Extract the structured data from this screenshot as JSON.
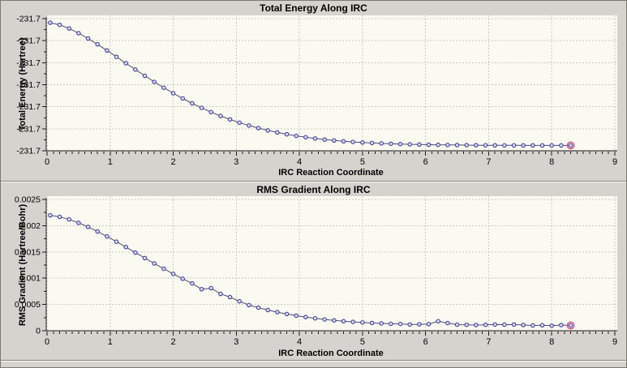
{
  "colors": {
    "window_bg": "#d6d3ce",
    "plot_bg": "#fbfaf0",
    "grid": "#c8c8c2",
    "axis": "#1a1a1a",
    "series_line": "#4d4d5a",
    "marker": "#3c3cae",
    "marker_fill": "#dfe0f4",
    "highlight": "#e0457b",
    "text": "#000000"
  },
  "chart_data": [
    {
      "type": "line",
      "title": "Total Energy Along IRC",
      "xlabel": "IRC Reaction Coordinate",
      "ylabel": "Total Energy (Hartree)",
      "xlim": [
        0,
        9
      ],
      "ylim": [
        -231.72,
        -231.69
      ],
      "grid": true,
      "x_major": 1,
      "x_minor": 0.1,
      "xtick_values": [
        0,
        1,
        2,
        3,
        4,
        5,
        6,
        7,
        8,
        9
      ],
      "xtick_labels": [
        "0",
        "1",
        "2",
        "3",
        "4",
        "5",
        "6",
        "7",
        "8",
        "9"
      ],
      "ytick_values": [
        -231.69,
        -231.695,
        -231.7,
        -231.705,
        -231.71,
        -231.715,
        -231.72
      ],
      "ytick_labels": [
        "-231.7",
        "-231.7",
        "-231.7",
        "-231.7",
        "-231.7",
        "-231.7",
        "-231.7"
      ],
      "highlight_last_point": true,
      "x": [
        0.05,
        0.2,
        0.35,
        0.5,
        0.65,
        0.8,
        0.95,
        1.1,
        1.25,
        1.4,
        1.55,
        1.7,
        1.85,
        2.0,
        2.15,
        2.3,
        2.45,
        2.6,
        2.75,
        2.9,
        3.05,
        3.2,
        3.35,
        3.5,
        3.65,
        3.8,
        3.95,
        4.1,
        4.25,
        4.4,
        4.55,
        4.7,
        4.85,
        5.0,
        5.15,
        5.3,
        5.45,
        5.6,
        5.75,
        5.9,
        6.05,
        6.2,
        6.35,
        6.5,
        6.65,
        6.8,
        6.95,
        7.1,
        7.25,
        7.4,
        7.55,
        7.7,
        7.85,
        8.0,
        8.15,
        8.3
      ],
      "y": [
        -231.69093,
        -231.6914,
        -231.69224,
        -231.6933,
        -231.69451,
        -231.69583,
        -231.69723,
        -231.69867,
        -231.70012,
        -231.70156,
        -231.70298,
        -231.70436,
        -231.70568,
        -231.70694,
        -231.70812,
        -231.70923,
        -231.71026,
        -231.71122,
        -231.71209,
        -231.71289,
        -231.71362,
        -231.71427,
        -231.71485,
        -231.71538,
        -231.71584,
        -231.71625,
        -231.71662,
        -231.71693,
        -231.71721,
        -231.71745,
        -231.71766,
        -231.71784,
        -231.71799,
        -231.71812,
        -231.71823,
        -231.71833,
        -231.71841,
        -231.71848,
        -231.71853,
        -231.71858,
        -231.71862,
        -231.71865,
        -231.71868,
        -231.7187,
        -231.71872,
        -231.71874,
        -231.71875,
        -231.71876,
        -231.71877,
        -231.71877,
        -231.71878,
        -231.71878,
        -231.71879,
        -231.71879,
        -231.71879,
        -231.71879
      ]
    },
    {
      "type": "line",
      "title": "RMS Gradient Along IRC",
      "xlabel": "IRC Reaction Coordinate",
      "ylabel": "RMS Gradient (Hartree/Bohr)",
      "xlim": [
        0,
        9
      ],
      "ylim": [
        0,
        0.0025
      ],
      "grid": true,
      "x_major": 1,
      "x_minor": 0.1,
      "xtick_values": [
        0,
        1,
        2,
        3,
        4,
        5,
        6,
        7,
        8,
        9
      ],
      "xtick_labels": [
        "0",
        "1",
        "2",
        "3",
        "4",
        "5",
        "6",
        "7",
        "8",
        "9"
      ],
      "ytick_values": [
        0.0025,
        0.002,
        0.0015,
        0.001,
        0.0005,
        0
      ],
      "ytick_labels": [
        "0.0025",
        "0.002",
        "0.0015",
        "0.001",
        "0.0005",
        "0"
      ],
      "highlight_last_point": true,
      "x": [
        0.05,
        0.2,
        0.35,
        0.5,
        0.65,
        0.8,
        0.95,
        1.1,
        1.25,
        1.4,
        1.55,
        1.7,
        1.85,
        2.0,
        2.15,
        2.3,
        2.45,
        2.6,
        2.75,
        2.9,
        3.05,
        3.2,
        3.35,
        3.5,
        3.65,
        3.8,
        3.95,
        4.1,
        4.25,
        4.4,
        4.55,
        4.7,
        4.85,
        5.0,
        5.15,
        5.3,
        5.45,
        5.6,
        5.75,
        5.9,
        6.05,
        6.2,
        6.35,
        6.5,
        6.65,
        6.8,
        6.95,
        7.1,
        7.25,
        7.4,
        7.55,
        7.7,
        7.85,
        8.0,
        8.15,
        8.3
      ],
      "y": [
        0.002197,
        0.002168,
        0.002119,
        0.002054,
        0.001977,
        0.001889,
        0.001795,
        0.001695,
        0.001592,
        0.001487,
        0.001383,
        0.00128,
        0.001179,
        0.001082,
        0.000989,
        0.000901,
        0.00079,
        0.00081,
        0.0007,
        0.00064,
        0.00056,
        0.000487,
        0.000438,
        0.000393,
        0.000354,
        0.000318,
        0.000287,
        0.00026,
        0.000236,
        0.000215,
        0.000197,
        0.000181,
        0.000168,
        0.000157,
        0.000147,
        0.000139,
        0.000132,
        0.00013,
        0.000118,
        0.000122,
        0.000125,
        0.00018,
        0.000145,
        0.000115,
        0.000112,
        0.000108,
        0.000112,
        0.000118,
        0.000115,
        0.000118,
        0.000108,
        0.0001,
        0.000104,
        9.5e-05,
        0.000108,
        0.0001
      ]
    }
  ]
}
